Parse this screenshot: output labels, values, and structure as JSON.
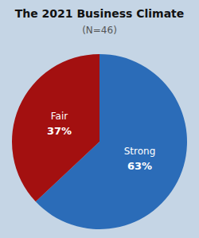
{
  "chart_data": {
    "type": "pie",
    "title": "The 2021 Business Climate",
    "subtitle": "(N=46)",
    "categories": [
      "Strong",
      "Fair"
    ],
    "values": [
      63,
      37
    ],
    "value_labels": [
      "63%",
      "37%"
    ],
    "colors": [
      "#2B6CB8",
      "#A31010"
    ],
    "data_labels": true
  }
}
